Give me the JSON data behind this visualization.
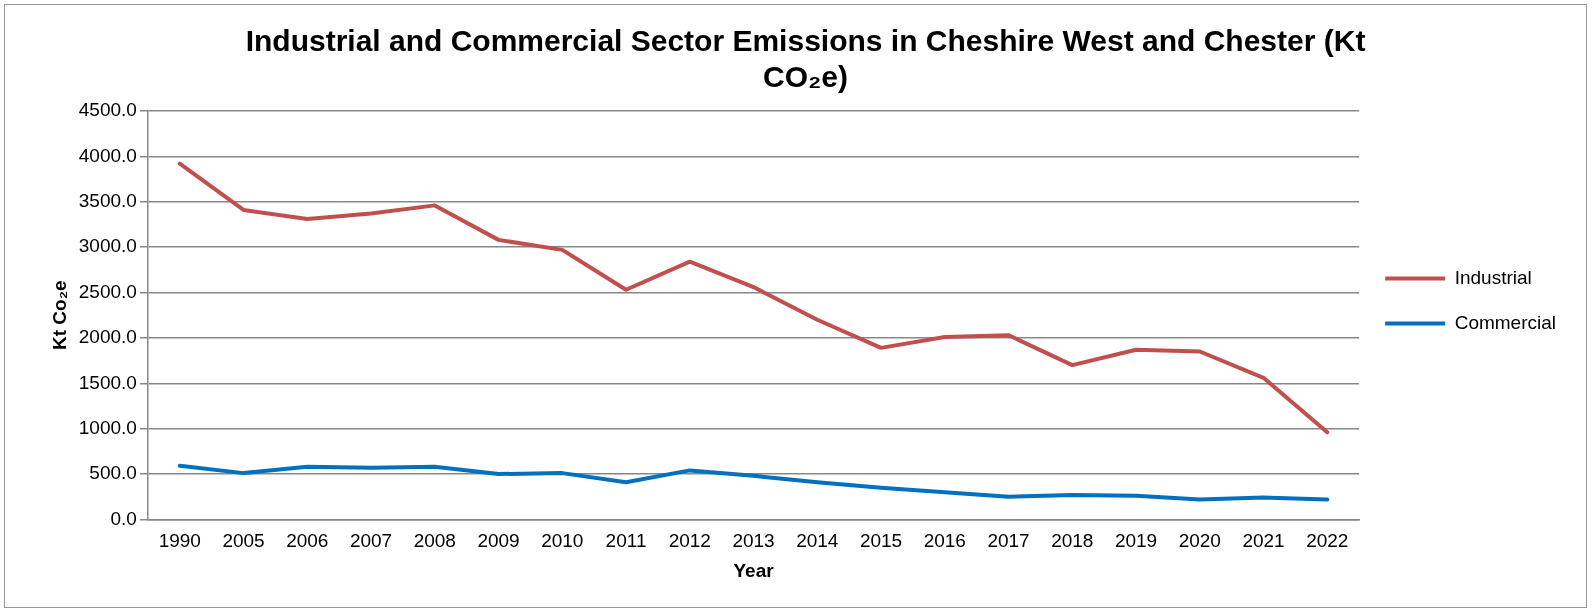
{
  "chart_data": {
    "type": "line",
    "title": "Industrial and Commercial Sector Emissions in Cheshire West and Chester (Kt CO₂e)",
    "xlabel": "Year",
    "ylabel": "Kt Co₂e",
    "categories": [
      "1990",
      "2005",
      "2006",
      "2007",
      "2008",
      "2009",
      "2010",
      "2011",
      "2012",
      "2013",
      "2014",
      "2015",
      "2016",
      "2017",
      "2018",
      "2019",
      "2020",
      "2021",
      "2022"
    ],
    "series": [
      {
        "name": "Industrial",
        "color": "#c0504d",
        "values": [
          3920,
          3410,
          3310,
          3370,
          3460,
          3080,
          2970,
          2530,
          2840,
          2560,
          2200,
          1890,
          2010,
          2030,
          1700,
          1870,
          1850,
          1560,
          960
        ]
      },
      {
        "name": "Commercial",
        "color": "#0070c0",
        "values": [
          590,
          510,
          580,
          570,
          580,
          500,
          510,
          410,
          540,
          480,
          410,
          350,
          300,
          250,
          270,
          260,
          220,
          240,
          220
        ]
      }
    ],
    "ylim": [
      0,
      4500
    ],
    "yticks": [
      {
        "value": 0,
        "label": "0.0"
      },
      {
        "value": 500,
        "label": "500.0"
      },
      {
        "value": 1000,
        "label": "1000.0"
      },
      {
        "value": 1500,
        "label": "1500.0"
      },
      {
        "value": 2000,
        "label": "2000.0"
      },
      {
        "value": 2500,
        "label": "2500.0"
      },
      {
        "value": 3000,
        "label": "3000.0"
      },
      {
        "value": 3500,
        "label": "3500.0"
      },
      {
        "value": 4000,
        "label": "4000.0"
      },
      {
        "value": 4500,
        "label": "4500.0"
      }
    ],
    "grid": "y",
    "legend": "right",
    "marker": "none",
    "line_style": "solid"
  }
}
